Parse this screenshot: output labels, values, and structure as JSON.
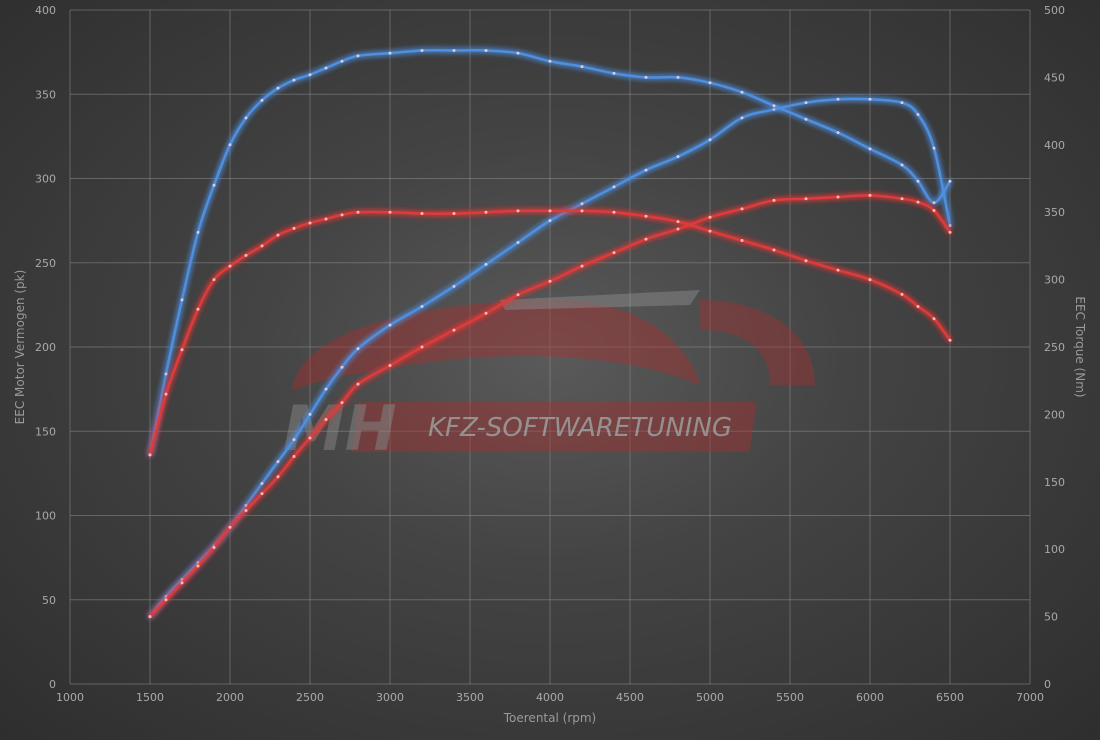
{
  "chart_data": {
    "type": "line",
    "xlabel": "Toerental (rpm)",
    "ylabel_left": "EEC Motor Vermogen (pk)",
    "ylabel_right": "EEC Torque (Nm)",
    "xlim": [
      1000,
      7000
    ],
    "ylim_left": [
      0,
      400
    ],
    "ylim_right": [
      0,
      500
    ],
    "x_ticks": [
      "1000",
      "1500",
      "2000",
      "2500",
      "3000",
      "3500",
      "4000",
      "4500",
      "5000",
      "5500",
      "6000",
      "6500",
      "7000"
    ],
    "y_ticks_left": [
      "0",
      "50",
      "100",
      "150",
      "200",
      "250",
      "300",
      "350",
      "400"
    ],
    "y_ticks_right": [
      "0",
      "50",
      "100",
      "150",
      "200",
      "250",
      "300",
      "350",
      "400",
      "450",
      "500"
    ],
    "grid": true,
    "colors": {
      "tuned": "#4f8fe0",
      "stock": "#e03a3a"
    },
    "series": [
      {
        "key": "power_tuned",
        "axis": "left",
        "color": "#4f8fe0",
        "x": [
          1500,
          1600,
          1700,
          1800,
          1900,
          2000,
          2100,
          2200,
          2300,
          2400,
          2500,
          2600,
          2700,
          2800,
          3000,
          3200,
          3400,
          3600,
          3800,
          4000,
          4200,
          4400,
          4600,
          4800,
          5000,
          5200,
          5400,
          5600,
          5800,
          6000,
          6200,
          6300,
          6400,
          6500
        ],
        "y": [
          40,
          52,
          62,
          72,
          82,
          93,
          106,
          119,
          132,
          145,
          160,
          175,
          188,
          199,
          213,
          224,
          236,
          249,
          262,
          275,
          285,
          295,
          305,
          313,
          323,
          336,
          341,
          345,
          347,
          347,
          345,
          338,
          318,
          272
        ]
      },
      {
        "key": "torque_tuned",
        "axis": "right",
        "color": "#4f8fe0",
        "x": [
          1500,
          1600,
          1700,
          1800,
          1900,
          2000,
          2100,
          2200,
          2300,
          2400,
          2500,
          2600,
          2700,
          2800,
          3000,
          3200,
          3400,
          3600,
          3800,
          4000,
          4200,
          4400,
          4600,
          4800,
          5000,
          5200,
          5400,
          5600,
          5800,
          6000,
          6200,
          6300,
          6400,
          6500
        ],
        "y": [
          170,
          230,
          285,
          335,
          370,
          400,
          420,
          433,
          442,
          448,
          452,
          457,
          462,
          466,
          468,
          470,
          470,
          470,
          468,
          462,
          458,
          453,
          450,
          450,
          446,
          439,
          429,
          419,
          409,
          397,
          385,
          373,
          357,
          373
        ]
      },
      {
        "key": "power_stock",
        "axis": "left",
        "color": "#e03a3a",
        "x": [
          1500,
          1600,
          1700,
          1800,
          1900,
          2000,
          2100,
          2200,
          2300,
          2400,
          2500,
          2600,
          2700,
          2800,
          3000,
          3200,
          3400,
          3600,
          3800,
          4000,
          4200,
          4400,
          4600,
          4800,
          5000,
          5200,
          5400,
          5600,
          5800,
          6000,
          6200,
          6300,
          6400,
          6500
        ],
        "y": [
          40,
          50,
          60,
          70,
          81,
          93,
          103,
          113,
          123,
          135,
          146,
          157,
          167,
          178,
          189,
          200,
          210,
          220,
          231,
          239,
          248,
          256,
          264,
          270,
          277,
          282,
          287,
          288,
          289,
          290,
          288,
          286,
          281,
          268
        ]
      },
      {
        "key": "torque_stock",
        "axis": "right",
        "color": "#e03a3a",
        "x": [
          1500,
          1600,
          1700,
          1800,
          1900,
          2000,
          2100,
          2200,
          2300,
          2400,
          2500,
          2600,
          2700,
          2800,
          3000,
          3200,
          3400,
          3600,
          3800,
          4000,
          4200,
          4400,
          4600,
          4800,
          5000,
          5200,
          5400,
          5600,
          5800,
          6000,
          6200,
          6300,
          6400,
          6500
        ],
        "y": [
          170,
          215,
          248,
          278,
          300,
          310,
          318,
          325,
          333,
          338,
          342,
          345,
          348,
          350,
          350,
          349,
          349,
          350,
          351,
          351,
          351,
          350,
          347,
          343,
          336,
          329,
          322,
          314,
          307,
          300,
          289,
          280,
          271,
          255
        ]
      }
    ]
  },
  "watermark": {
    "brand": "MH",
    "tagline": "KFZ-SOFTWARETUNING"
  }
}
